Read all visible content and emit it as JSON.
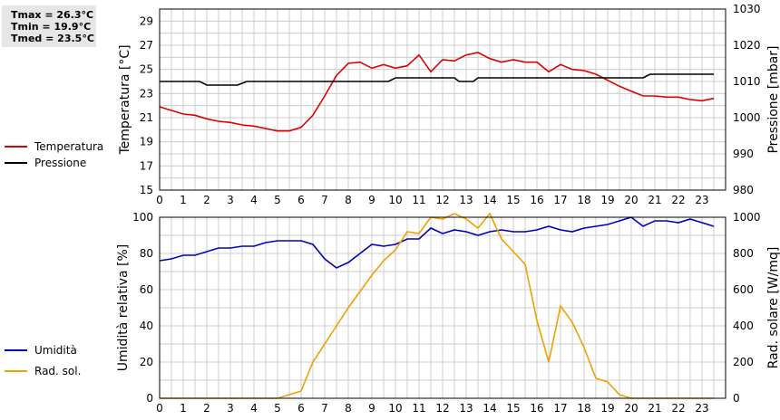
{
  "stats": {
    "tmax": "Tmax = 26.3°C",
    "tmin": "Tmin = 19.9°C",
    "tmed": "Tmed = 23.5°C"
  },
  "colors": {
    "temperature": "#dd0000",
    "pressure": "#000000",
    "humidity": "#0000bb",
    "solar": "#f0a000",
    "grid": "#cccccc",
    "stats_bg": "#e6e6e6"
  },
  "chart_data": [
    {
      "type": "line",
      "title": "",
      "x_ticks": [
        0,
        1,
        2,
        3,
        4,
        5,
        6,
        7,
        8,
        9,
        10,
        11,
        12,
        13,
        14,
        15,
        16,
        17,
        18,
        19,
        20,
        21,
        22,
        23
      ],
      "xlim": [
        0,
        24
      ],
      "grid": true,
      "legend_placement": "left",
      "ylabel_left": "Temperatura [°C]",
      "ylim_left": [
        15,
        30
      ],
      "yticks_left": [
        15,
        17,
        19,
        21,
        23,
        25,
        27,
        29
      ],
      "ylabel_right": "Pressione [mbar]",
      "ylim_right": [
        980,
        1030
      ],
      "yticks_right": [
        980,
        990,
        1000,
        1010,
        1020,
        1030
      ],
      "series": [
        {
          "name": "Temperatura",
          "axis": "left",
          "color": "#dd0000",
          "x": [
            0,
            0.5,
            1,
            1.5,
            2,
            2.5,
            3,
            3.5,
            4,
            4.5,
            5,
            5.5,
            6,
            6.5,
            7,
            7.5,
            8,
            8.5,
            9,
            9.5,
            10,
            10.5,
            11,
            11.5,
            12,
            12.5,
            13,
            13.5,
            14,
            14.5,
            15,
            15.5,
            16,
            16.5,
            17,
            17.5,
            18,
            18.5,
            19,
            19.5,
            20,
            20.5,
            21,
            21.5,
            22,
            22.5,
            23,
            23.5
          ],
          "y": [
            21.9,
            21.6,
            21.3,
            21.2,
            20.9,
            20.7,
            20.6,
            20.4,
            20.3,
            20.1,
            19.9,
            19.9,
            20.2,
            21.2,
            22.8,
            24.5,
            25.5,
            25.6,
            25.1,
            25.4,
            25.1,
            25.3,
            26.2,
            24.8,
            25.8,
            25.7,
            26.2,
            26.4,
            25.9,
            25.6,
            25.8,
            25.6,
            25.6,
            24.8,
            25.4,
            25.0,
            24.9,
            24.6,
            24.1,
            23.6,
            23.2,
            22.8,
            22.8,
            22.7,
            22.7,
            22.5,
            22.4,
            22.6
          ]
        },
        {
          "name": "Pressione",
          "axis": "right",
          "color": "#000000",
          "x": [
            0,
            1.7,
            2,
            3.3,
            3.7,
            9.7,
            10,
            12.5,
            12.7,
            13.3,
            13.5,
            20.5,
            20.8,
            23.5
          ],
          "y": [
            1010,
            1010,
            1009,
            1009,
            1010,
            1010,
            1011,
            1011,
            1010,
            1010,
            1011,
            1011,
            1012,
            1012
          ]
        }
      ]
    },
    {
      "type": "line",
      "title": "",
      "x_ticks": [
        0,
        1,
        2,
        3,
        4,
        5,
        6,
        7,
        8,
        9,
        10,
        11,
        12,
        13,
        14,
        15,
        16,
        17,
        18,
        19,
        20,
        21,
        22,
        23
      ],
      "xlim": [
        0,
        24
      ],
      "grid": true,
      "legend_placement": "left",
      "ylabel_left": "Umidità relativa [%]",
      "ylim_left": [
        0,
        100
      ],
      "yticks_left": [
        0,
        20,
        40,
        60,
        80,
        100
      ],
      "ylabel_right": "Rad. solare [W/mq]",
      "ylim_right": [
        0,
        1000
      ],
      "yticks_right": [
        0,
        200,
        400,
        600,
        800,
        1000
      ],
      "series": [
        {
          "name": "Umidità",
          "axis": "left",
          "color": "#0000bb",
          "x": [
            0,
            0.5,
            1,
            1.5,
            2,
            2.5,
            3,
            3.5,
            4,
            4.5,
            5,
            5.5,
            6,
            6.5,
            7,
            7.5,
            8,
            8.5,
            9,
            9.5,
            10,
            10.5,
            11,
            11.5,
            12,
            12.5,
            13,
            13.5,
            14,
            14.5,
            15,
            15.5,
            16,
            16.5,
            17,
            17.5,
            18,
            18.5,
            19,
            19.5,
            20,
            20.5,
            21,
            21.5,
            22,
            22.5,
            23,
            23.5
          ],
          "y": [
            76,
            77,
            79,
            79,
            81,
            83,
            83,
            84,
            84,
            86,
            87,
            87,
            87,
            85,
            77,
            72,
            75,
            80,
            85,
            84,
            85,
            88,
            88,
            94,
            91,
            93,
            92,
            90,
            92,
            93,
            92,
            92,
            93,
            95,
            93,
            92,
            94,
            95,
            96,
            98,
            100,
            95,
            98,
            98,
            97,
            99,
            97,
            95
          ]
        },
        {
          "name": "Rad. sol.",
          "axis": "right",
          "color": "#f0a000",
          "x": [
            0,
            0.5,
            1,
            1.5,
            2,
            2.5,
            3,
            3.5,
            4,
            4.5,
            5,
            5.5,
            6,
            6.5,
            7,
            7.5,
            8,
            8.5,
            9,
            9.5,
            10,
            10.5,
            11,
            11.5,
            12,
            12.5,
            13,
            13.5,
            14,
            14.5,
            15,
            15.5,
            16,
            16.5,
            17,
            17.5,
            18,
            18.5,
            19,
            19.5,
            20,
            20.5,
            21,
            21.5,
            22,
            22.5,
            23,
            23.5
          ],
          "y": [
            0,
            0,
            0,
            0,
            0,
            0,
            0,
            0,
            0,
            0,
            0,
            20,
            40,
            200,
            300,
            400,
            500,
            590,
            680,
            760,
            820,
            920,
            910,
            1000,
            990,
            1020,
            990,
            940,
            1020,
            880,
            810,
            740,
            430,
            200,
            510,
            420,
            280,
            110,
            90,
            20,
            0,
            0,
            0,
            0,
            0,
            0,
            0,
            0
          ]
        }
      ]
    }
  ]
}
